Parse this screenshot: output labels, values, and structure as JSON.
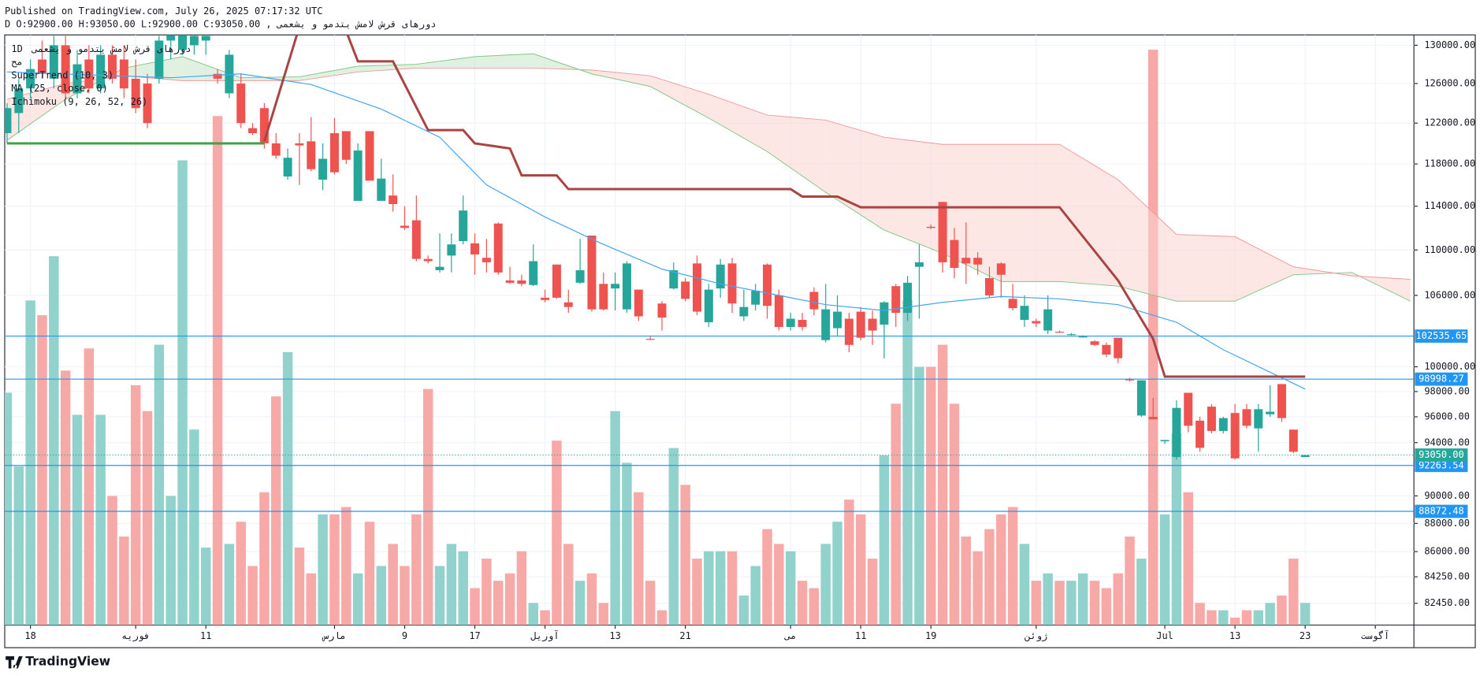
{
  "header": {
    "published": "Published on TradingView.com, July 26, 2025 07:17:32 UTC",
    "symbol_line": "دورهاى قرش لامش يتدمو و يشعمى , D O:92900.00 H:93050.00 L:92900.00 C:93050.00"
  },
  "legend": {
    "interval": "1D",
    "name": "دورهاى قرش لامش يتدمو و يشعمى",
    "extra": "مح"
  },
  "footer": {
    "brand": "TradingView"
  },
  "chart_data": {
    "type": "candlestick",
    "log": true,
    "grid": true,
    "colors": {
      "up": "#26a69a",
      "down": "#ef5350",
      "volume_up": "#92d2cc",
      "volume_down": "#f7a9a7"
    },
    "xlim": [
      -0.2,
      120.3
    ],
    "ylim": [
      81000,
      131100
    ],
    "vlim": [
      0,
      160
    ],
    "xticks": [
      {
        "value": 2,
        "label": "18"
      },
      {
        "value": 11,
        "label": "فوریه"
      },
      {
        "value": 17,
        "label": "11"
      },
      {
        "value": 28,
        "label": "مارس"
      },
      {
        "value": 34,
        "label": "9"
      },
      {
        "value": 40,
        "label": "17"
      },
      {
        "value": 46,
        "label": "آوریل"
      },
      {
        "value": 52,
        "label": "13"
      },
      {
        "value": 58,
        "label": "21"
      },
      {
        "value": 67,
        "label": "می"
      },
      {
        "value": 73,
        "label": "11"
      },
      {
        "value": 79,
        "label": "19"
      },
      {
        "value": 88,
        "label": "ژوئن"
      },
      {
        "value": 99,
        "label": "Jul"
      },
      {
        "value": 105,
        "label": "13"
      },
      {
        "value": 111,
        "label": "23"
      },
      {
        "value": 117,
        "label": "آگوست"
      }
    ],
    "yticks": [
      {
        "value": 130000,
        "label": "130000.00"
      },
      {
        "value": 126000,
        "label": "126000.00"
      },
      {
        "value": 122000,
        "label": "122000.00"
      },
      {
        "value": 118000,
        "label": "118000.00"
      },
      {
        "value": 114000,
        "label": "114000.00"
      },
      {
        "value": 110000,
        "label": "110000.00"
      },
      {
        "value": 106000,
        "label": "106000.00"
      },
      {
        "value": 100000,
        "label": "100000.00"
      },
      {
        "value": 98000,
        "label": "98000.00"
      },
      {
        "value": 96000,
        "label": "96000.00"
      },
      {
        "value": 94000,
        "label": "94000.00"
      },
      {
        "value": 90000,
        "label": "90000.00"
      },
      {
        "value": 88000,
        "label": "88000.00"
      },
      {
        "value": 86000,
        "label": "86000.00"
      },
      {
        "value": 84250,
        "label": "84250.00"
      },
      {
        "value": 82450,
        "label": "82450.00"
      }
    ],
    "ohlc": [
      [
        121000,
        124000,
        120000,
        123500
      ],
      [
        123000,
        126500,
        121000,
        125500
      ],
      [
        125500,
        128500,
        124500,
        127500
      ],
      [
        128500,
        130500,
        126500,
        127000
      ],
      [
        126500,
        131000,
        125500,
        130000
      ],
      [
        130000,
        131000,
        124500,
        125000
      ],
      [
        125000,
        129500,
        124500,
        128000
      ],
      [
        128500,
        130000,
        125000,
        125500
      ],
      [
        125500,
        130000,
        125000,
        129000
      ],
      [
        129000,
        130000,
        126000,
        126500
      ],
      [
        128500,
        130000,
        124500,
        125500
      ],
      [
        126500,
        128500,
        123000,
        123500
      ],
      [
        126000,
        127000,
        121500,
        122000
      ],
      [
        126500,
        131000,
        126000,
        130500
      ],
      [
        130500,
        131100,
        128500,
        131100
      ],
      [
        129500,
        131100,
        129000,
        131100
      ],
      [
        130000,
        131100,
        129000,
        131000
      ],
      [
        130500,
        131100,
        129000,
        131000
      ],
      [
        127000,
        127500,
        126000,
        126500
      ],
      [
        125000,
        129500,
        124500,
        129000
      ],
      [
        126000,
        127000,
        121500,
        122000
      ],
      [
        121500,
        122000,
        120800,
        121000
      ],
      [
        123500,
        124000,
        119500,
        120000
      ],
      [
        120000,
        121000,
        118500,
        118800
      ],
      [
        116800,
        119500,
        116500,
        118600
      ],
      [
        120000,
        121000,
        116000,
        119800
      ],
      [
        120200,
        122600,
        117300,
        117500
      ],
      [
        116500,
        120000,
        115500,
        118500
      ],
      [
        121000,
        122500,
        117000,
        117200
      ],
      [
        121200,
        121200,
        118000,
        118400
      ],
      [
        114500,
        120000,
        114500,
        119300
      ],
      [
        121200,
        121200,
        116400,
        116400
      ],
      [
        114500,
        118500,
        114500,
        116600
      ],
      [
        115000,
        117000,
        113500,
        114200
      ],
      [
        112200,
        114000,
        111800,
        112000
      ],
      [
        112700,
        115000,
        109000,
        109200
      ],
      [
        109200,
        109500,
        108800,
        109000
      ],
      [
        108200,
        111500,
        108000,
        108500
      ],
      [
        109500,
        111500,
        108000,
        110500
      ],
      [
        110800,
        115000,
        110500,
        113600
      ],
      [
        110600,
        111500,
        107800,
        109600
      ],
      [
        109300,
        111000,
        108000,
        108900
      ],
      [
        112400,
        112500,
        107800,
        108000
      ],
      [
        107300,
        108500,
        107000,
        107100
      ],
      [
        107300,
        107800,
        106800,
        107000
      ],
      [
        106900,
        110500,
        106800,
        109000
      ],
      [
        105800,
        106500,
        105400,
        105600
      ],
      [
        108700,
        108700,
        105700,
        105800
      ],
      [
        105400,
        106500,
        104500,
        105000
      ],
      [
        107100,
        111000,
        107000,
        108200
      ],
      [
        111300,
        111300,
        104600,
        104800
      ],
      [
        107000,
        108000,
        104700,
        104800
      ],
      [
        106600,
        108000,
        104700,
        107000
      ],
      [
        104800,
        109000,
        104500,
        108800
      ],
      [
        106500,
        106500,
        103800,
        104200
      ],
      [
        102300,
        102500,
        102200,
        102250
      ],
      [
        105300,
        105500,
        103000,
        104100
      ],
      [
        106600,
        108900,
        106500,
        108200
      ],
      [
        107200,
        107500,
        105500,
        105700
      ],
      [
        108800,
        109500,
        104300,
        104600
      ],
      [
        103700,
        107000,
        103300,
        106500
      ],
      [
        106600,
        109200,
        105800,
        108700
      ],
      [
        108800,
        109300,
        104500,
        105300
      ],
      [
        104200,
        106500,
        103800,
        105000
      ],
      [
        105200,
        107000,
        104700,
        106400
      ],
      [
        108700,
        108800,
        104000,
        105100
      ],
      [
        106000,
        106500,
        103000,
        103300
      ],
      [
        103300,
        104500,
        103000,
        104000
      ],
      [
        103900,
        104500,
        103000,
        103300
      ],
      [
        106300,
        106700,
        104300,
        104800
      ],
      [
        102200,
        107000,
        102000,
        104800
      ],
      [
        103200,
        106000,
        102500,
        104600
      ],
      [
        104000,
        104500,
        101200,
        101800
      ],
      [
        104600,
        105000,
        102200,
        102400
      ],
      [
        104000,
        104700,
        101800,
        103000
      ],
      [
        103500,
        105500,
        100700,
        105400
      ],
      [
        106800,
        107000,
        103300,
        104500
      ],
      [
        104500,
        107700,
        103800,
        107100
      ],
      [
        108500,
        110500,
        104000,
        108900
      ],
      [
        112100,
        112300,
        111900,
        112000
      ],
      [
        114400,
        114400,
        108000,
        108900
      ],
      [
        110900,
        112000,
        107500,
        108400
      ],
      [
        109300,
        112500,
        107000,
        108800
      ],
      [
        109300,
        109800,
        107800,
        108700
      ],
      [
        107500,
        108500,
        105800,
        106000
      ],
      [
        108800,
        108900,
        105800,
        107800
      ],
      [
        105700,
        107000,
        104700,
        104900
      ],
      [
        103900,
        106000,
        103300,
        105100
      ],
      [
        103800,
        104000,
        103300,
        103600
      ],
      [
        103000,
        106000,
        102700,
        104800
      ],
      [
        102900,
        103000,
        102800,
        102850
      ],
      [
        102700,
        102800,
        102600,
        102700
      ],
      [
        102500,
        102600,
        102400,
        102500
      ],
      [
        102100,
        102200,
        101700,
        101800
      ],
      [
        101800,
        102000,
        100800,
        101000
      ],
      [
        102400,
        102400,
        100300,
        100700
      ],
      [
        99000,
        99100,
        98800,
        98900
      ],
      [
        96100,
        98900,
        96000,
        98900
      ],
      [
        96000,
        97500,
        95800,
        95800
      ],
      [
        94100,
        94200,
        93900,
        94200
      ],
      [
        92900,
        97300,
        92700,
        96700
      ],
      [
        97900,
        97900,
        94800,
        95300
      ],
      [
        95700,
        96000,
        93300,
        93600
      ],
      [
        96800,
        97000,
        94700,
        94900
      ],
      [
        94900,
        96000,
        94700,
        95900
      ],
      [
        96300,
        97000,
        92700,
        92800
      ],
      [
        96600,
        97000,
        95100,
        95300
      ],
      [
        95100,
        97000,
        93300,
        96600
      ],
      [
        96200,
        98500,
        96000,
        96400
      ],
      [
        98600,
        98600,
        95600,
        95900
      ],
      [
        95000,
        95000,
        93200,
        93300
      ],
      [
        92900,
        93050,
        92900,
        93050
      ]
    ],
    "volume": [
      63,
      43,
      88,
      84,
      100,
      69,
      57,
      75,
      57,
      35,
      24,
      65,
      58,
      76,
      35,
      126,
      53,
      21,
      138,
      22,
      28,
      16,
      36,
      62,
      74,
      21,
      14,
      30,
      30,
      32,
      14,
      28,
      16,
      22,
      16,
      30,
      64,
      16,
      22,
      20,
      10,
      18,
      12,
      14,
      20,
      6,
      4,
      50,
      22,
      12,
      14,
      6,
      58,
      44,
      36,
      12,
      4,
      48,
      38,
      18,
      20,
      20,
      20,
      8,
      16,
      26,
      22,
      20,
      12,
      10,
      22,
      28,
      34,
      30,
      18,
      46,
      60,
      88,
      70,
      70,
      76,
      60,
      24,
      20,
      26,
      30,
      32,
      22,
      12,
      14,
      12,
      12,
      14,
      12,
      10,
      14,
      24,
      18,
      156,
      30,
      52,
      36,
      6,
      4,
      4,
      2,
      4,
      4,
      6,
      8,
      18,
      6
    ],
    "ma": {
      "name": "MA (25, close, 0)",
      "color": "#42a5f5",
      "x": [
        0,
        14,
        20,
        26,
        32,
        37,
        41,
        46,
        51,
        56,
        61,
        66,
        70,
        75,
        80,
        85,
        90,
        95,
        100,
        104,
        109,
        111
      ],
      "values": [
        127200,
        126600,
        127000,
        125900,
        123400,
        120600,
        116000,
        113000,
        110500,
        108300,
        107000,
        106000,
        105200,
        104700,
        105400,
        105900,
        105700,
        105200,
        103700,
        101400,
        99100,
        98200
      ]
    },
    "supertrend": {
      "name": "SuperTrend (10, 3)",
      "up": {
        "color": "#43a047",
        "x": [
          0,
          22
        ],
        "values": [
          120000,
          120000
        ]
      },
      "down": {
        "color": "#a94442",
        "x": [
          22,
          25,
          29,
          30,
          33,
          36,
          39,
          40,
          43,
          44,
          47,
          48,
          67,
          68,
          71,
          73,
          90,
          95,
          98,
          99,
          111
        ],
        "values": [
          120200,
          132000,
          131500,
          128300,
          128300,
          121300,
          121300,
          120000,
          119500,
          116900,
          116900,
          115600,
          115600,
          114900,
          114900,
          113900,
          113900,
          107300,
          102300,
          99200,
          99200
        ]
      }
    },
    "ichimoku": {
      "name": "Ichimoku (9, 26, 52, 26)",
      "color_a": "#81c784",
      "color_b": "#ef9a9a",
      "fill_a": "#c8e6c9",
      "fill_b": "#fbd3cf",
      "x": [
        0,
        5,
        10,
        15,
        20,
        25,
        30,
        35,
        40,
        45,
        50,
        55,
        60,
        65,
        70,
        75,
        80,
        85,
        90,
        95,
        100,
        105,
        110,
        115,
        120
      ],
      "span_a": [
        120300,
        124400,
        127600,
        128800,
        126600,
        126700,
        127800,
        128000,
        128800,
        129100,
        127000,
        125700,
        122500,
        119200,
        115300,
        111800,
        109700,
        107200,
        107200,
        106800,
        105500,
        105500,
        107800,
        108000,
        105500
      ],
      "span_b": [
        124400,
        126000,
        126800,
        126300,
        126300,
        126300,
        127200,
        127600,
        127600,
        127600,
        127400,
        126800,
        124900,
        122800,
        122300,
        120600,
        119900,
        119900,
        119900,
        116500,
        111400,
        111200,
        108500,
        107700,
        107400
      ]
    },
    "levels": [
      102535.65,
      98998.27,
      92263.54,
      88872.48
    ],
    "level_color": "#2196f3",
    "last_price": {
      "value": 93050,
      "label": "93050.00"
    }
  }
}
